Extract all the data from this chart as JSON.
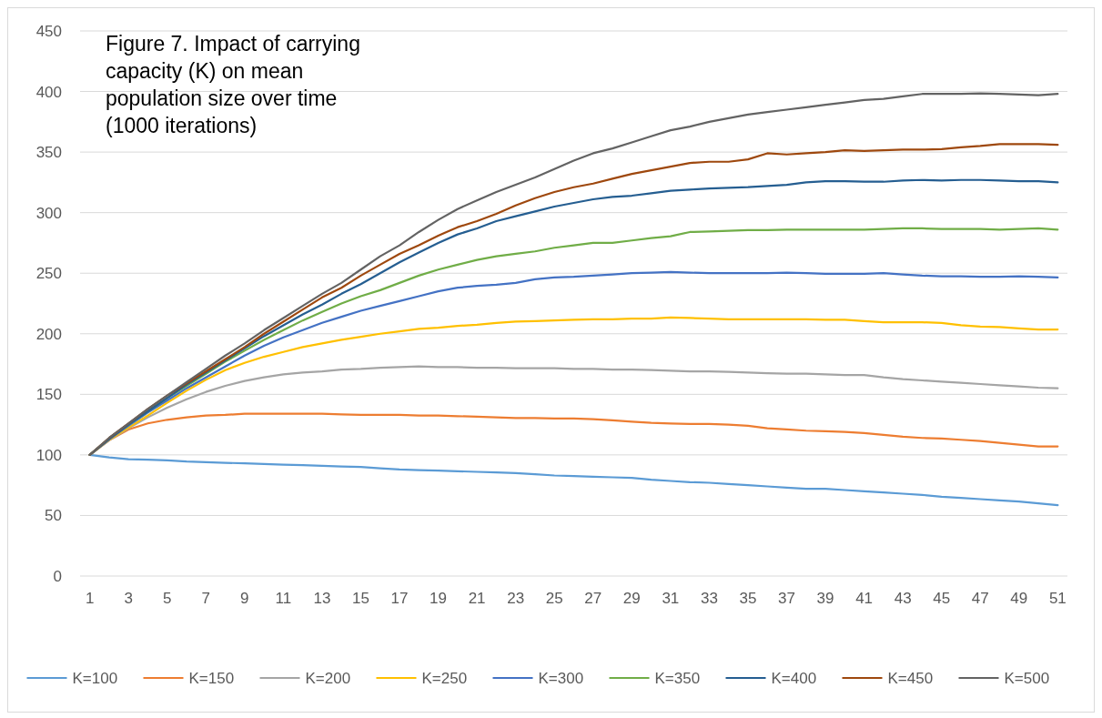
{
  "chart_data": {
    "type": "line",
    "title": "Figure 7. Impact of carrying capacity (K) on mean population size over time (1000 iterations)",
    "x": [
      1,
      2,
      3,
      4,
      5,
      6,
      7,
      8,
      9,
      10,
      11,
      12,
      13,
      14,
      15,
      16,
      17,
      18,
      19,
      20,
      21,
      22,
      23,
      24,
      25,
      26,
      27,
      28,
      29,
      30,
      31,
      32,
      33,
      34,
      35,
      36,
      37,
      38,
      39,
      40,
      41,
      42,
      43,
      44,
      45,
      46,
      47,
      48,
      49,
      50,
      51
    ],
    "xlim": [
      0.5,
      51.5
    ],
    "xticks": [
      1,
      3,
      5,
      7,
      9,
      11,
      13,
      15,
      17,
      19,
      21,
      23,
      25,
      27,
      29,
      31,
      33,
      35,
      37,
      39,
      41,
      43,
      45,
      47,
      49,
      51
    ],
    "ylim": [
      0,
      450
    ],
    "yticks": [
      0,
      50,
      100,
      150,
      200,
      250,
      300,
      350,
      400,
      450
    ],
    "grid": "y",
    "legend": "bottom",
    "marker": "none",
    "line_style": "solid",
    "series": [
      {
        "name": "K=100",
        "color": "#5b9bd5",
        "values": [
          100,
          98,
          96.5,
          96,
          95.5,
          94.5,
          94,
          93.5,
          93,
          92.5,
          92,
          91.5,
          91,
          90.5,
          90,
          89,
          88,
          87.5,
          87,
          86.5,
          86,
          85.5,
          85,
          84,
          83,
          82.5,
          82,
          81.5,
          81,
          79.5,
          78.5,
          77.5,
          77,
          76,
          75,
          74,
          73,
          72,
          72,
          71,
          70,
          69,
          68,
          67,
          65.5,
          64.5,
          63.5,
          62.5,
          61.5,
          60,
          58.5
        ]
      },
      {
        "name": "K=150",
        "color": "#ed7d31",
        "values": [
          100,
          112,
          121,
          126,
          129,
          131,
          132.5,
          133,
          134,
          134,
          134,
          134,
          134,
          133.5,
          133,
          133,
          133,
          132.5,
          132.5,
          132,
          131.5,
          131,
          130.5,
          130.5,
          130,
          130,
          129.5,
          128.5,
          127.5,
          126.5,
          126,
          125.5,
          125.5,
          125,
          124,
          122,
          121,
          120,
          119.5,
          119,
          118,
          116.5,
          115,
          114,
          113.5,
          112.5,
          111.5,
          110,
          108.5,
          107,
          107
        ]
      },
      {
        "name": "K=200",
        "color": "#a5a5a5",
        "values": [
          100,
          112,
          122,
          131,
          139,
          146,
          152,
          157,
          161,
          164,
          166.5,
          168,
          169,
          170.5,
          171,
          172,
          172.5,
          173,
          172.5,
          172.5,
          172,
          172,
          171.5,
          171.5,
          171.5,
          171,
          171,
          170.5,
          170.5,
          170,
          169.5,
          169,
          169,
          168.5,
          168,
          167.5,
          167,
          167,
          166.5,
          166,
          166,
          164,
          162.5,
          161.5,
          160.5,
          159.5,
          158.5,
          157.5,
          156.5,
          155.5,
          155
        ]
      },
      {
        "name": "K=250",
        "color": "#ffc000",
        "values": [
          100,
          112.5,
          122.5,
          132.5,
          143,
          153,
          162,
          170,
          176,
          181,
          185,
          189,
          192,
          195,
          197.5,
          200,
          202,
          204,
          205,
          206.5,
          207.5,
          209,
          210,
          210.5,
          211,
          211.5,
          212,
          212,
          212.5,
          212.5,
          213.5,
          213,
          212.5,
          212,
          212,
          212,
          212,
          212,
          211.5,
          211.5,
          210.5,
          209.5,
          209.5,
          209.5,
          209,
          207,
          206,
          205.5,
          204.5,
          203.5,
          203.5
        ]
      },
      {
        "name": "K=300",
        "color": "#4472c4",
        "values": [
          100,
          113,
          124,
          135,
          145,
          155,
          164,
          173,
          182,
          190,
          197,
          203,
          209,
          214,
          219,
          223,
          227,
          231,
          235,
          238,
          239.5,
          240.5,
          242,
          245,
          246.5,
          247,
          248,
          249,
          250,
          250.5,
          251,
          250.5,
          250,
          250,
          250,
          250,
          250.5,
          250,
          249.5,
          249.5,
          249.5,
          250,
          249,
          248,
          247.5,
          247.5,
          247,
          247,
          247.5,
          247,
          246.5
        ]
      },
      {
        "name": "K=350",
        "color": "#70ad47",
        "values": [
          100,
          113.5,
          125,
          136,
          147,
          157,
          167,
          177,
          186,
          195,
          203,
          211,
          218,
          225,
          231,
          236,
          242,
          248,
          253,
          257,
          261,
          264,
          266,
          268,
          271,
          273,
          275,
          275,
          277,
          279,
          280.5,
          284,
          284.5,
          285,
          285.5,
          285.5,
          286,
          286,
          286,
          286,
          286,
          286.5,
          287,
          287,
          286.5,
          286.5,
          286.5,
          286,
          286.5,
          287,
          286
        ]
      },
      {
        "name": "K=400",
        "color": "#255e91",
        "values": [
          100,
          113,
          125,
          136,
          147,
          158,
          168,
          178,
          188,
          198,
          207,
          216,
          224,
          233,
          241,
          250,
          259,
          267,
          275,
          282,
          287,
          293,
          297,
          301,
          305,
          308,
          311,
          313,
          314,
          316,
          318,
          319,
          320,
          320.5,
          321,
          322,
          323,
          325,
          326,
          326,
          325.5,
          325.5,
          326.5,
          327,
          326.5,
          327,
          327,
          326.5,
          326,
          326,
          325
        ]
      },
      {
        "name": "K=450",
        "color": "#9e480e",
        "values": [
          100,
          114,
          126,
          138,
          149,
          159,
          169,
          179,
          189,
          200,
          210,
          220,
          230,
          238,
          248,
          257,
          266,
          273,
          281,
          288,
          293,
          299,
          306,
          312,
          317,
          321,
          324,
          328,
          332,
          335,
          338,
          341,
          342,
          342,
          344,
          349,
          348,
          349,
          350,
          351.5,
          351,
          351.5,
          352,
          352,
          352.5,
          354,
          355,
          356.5,
          356.5,
          356.5,
          356
        ]
      },
      {
        "name": "K=500",
        "color": "#636363",
        "values": [
          100,
          114,
          126,
          138,
          149,
          160,
          171,
          182,
          192,
          203,
          213,
          223,
          233,
          242,
          253,
          264,
          273,
          284,
          294,
          303,
          310,
          317,
          323,
          329,
          336,
          343,
          349,
          353,
          358,
          363,
          368,
          371,
          375,
          378,
          381,
          383,
          385,
          387,
          389,
          391,
          393,
          394,
          396,
          398,
          398,
          398,
          398.5,
          398,
          397.5,
          397,
          398
        ]
      }
    ]
  }
}
